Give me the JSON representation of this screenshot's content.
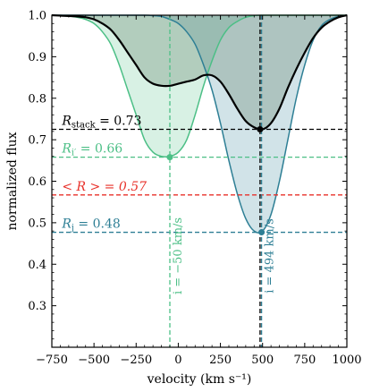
{
  "chart_data": {
    "type": "line",
    "xlabel": "velocity (km s⁻¹)",
    "ylabel": "normalized flux",
    "xlim": [
      -750,
      1000
    ],
    "ylim": [
      0.2,
      1.0
    ],
    "x_ticks": [
      -750,
      -500,
      -250,
      0,
      250,
      500,
      750,
      1000
    ],
    "x_tick_labels": [
      "−750",
      "−500",
      "−250",
      "0",
      "250",
      "500",
      "750",
      "1000"
    ],
    "y_ticks": [
      0.3,
      0.4,
      0.5,
      0.6,
      0.7,
      0.8,
      0.9,
      1.0
    ],
    "y_tick_labels": [
      "0.3",
      "0.4",
      "0.5",
      "0.6",
      "0.7",
      "0.8",
      "0.9",
      "1.0"
    ],
    "grid": false,
    "series": [
      {
        "color": "#4cbf86",
        "x": [
          -750,
          -700,
          -650,
          -600,
          -550,
          -500,
          -450,
          -400,
          -350,
          -300,
          -250,
          -200,
          -150,
          -100,
          -50,
          0,
          50,
          100,
          150,
          200,
          250,
          300,
          350,
          400,
          450,
          500,
          550,
          600,
          650,
          700,
          750,
          800,
          850,
          900,
          950,
          1000
        ],
        "y": [
          1.0,
          0.999,
          0.998,
          0.995,
          0.99,
          0.98,
          0.96,
          0.93,
          0.88,
          0.82,
          0.76,
          0.7,
          0.67,
          0.66,
          0.66,
          0.67,
          0.7,
          0.76,
          0.83,
          0.89,
          0.94,
          0.97,
          0.985,
          0.995,
          0.999,
          1.0,
          1.0,
          1.0,
          1.0,
          1.0,
          1.0,
          1.0,
          1.0,
          1.0,
          1.0,
          1.0
        ]
      },
      {
        "color": "#2e7f95",
        "x": [
          -750,
          -700,
          -650,
          -600,
          -550,
          -500,
          -450,
          -400,
          -350,
          -300,
          -250,
          -200,
          -150,
          -100,
          -50,
          0,
          50,
          100,
          150,
          200,
          250,
          300,
          350,
          400,
          450,
          500,
          550,
          600,
          650,
          700,
          750,
          800,
          850,
          900,
          950,
          1000
        ],
        "y": [
          1.0,
          1.0,
          1.0,
          1.0,
          1.0,
          1.0,
          1.0,
          1.0,
          1.0,
          1.0,
          1.0,
          1.0,
          0.999,
          0.997,
          0.99,
          0.98,
          0.96,
          0.93,
          0.88,
          0.82,
          0.74,
          0.65,
          0.57,
          0.51,
          0.48,
          0.48,
          0.52,
          0.6,
          0.7,
          0.8,
          0.88,
          0.94,
          0.975,
          0.99,
          0.997,
          1.0
        ]
      },
      {
        "color": "#000000",
        "x": [
          -750,
          -700,
          -650,
          -600,
          -550,
          -500,
          -450,
          -400,
          -350,
          -300,
          -250,
          -200,
          -150,
          -100,
          -50,
          0,
          50,
          100,
          150,
          200,
          250,
          300,
          350,
          400,
          450,
          500,
          550,
          600,
          650,
          700,
          750,
          800,
          850,
          900,
          950,
          1000
        ],
        "y": [
          1.0,
          0.999,
          0.998,
          0.997,
          0.995,
          0.99,
          0.98,
          0.965,
          0.94,
          0.91,
          0.88,
          0.85,
          0.835,
          0.83,
          0.83,
          0.835,
          0.84,
          0.845,
          0.855,
          0.855,
          0.84,
          0.81,
          0.775,
          0.745,
          0.73,
          0.725,
          0.74,
          0.775,
          0.825,
          0.87,
          0.91,
          0.945,
          0.97,
          0.985,
          0.995,
          1.0
        ]
      }
    ],
    "hlines": [
      {
        "y": 0.725,
        "color": "#000000",
        "label": "R",
        "label_sub": "stack",
        "label_value": " = 0.73",
        "label_x": -690
      },
      {
        "y": 0.658,
        "color": "#4cbf86",
        "label": "R",
        "label_sub": "i′",
        "label_value": " = 0.66",
        "label_x": -690
      },
      {
        "y": 0.567,
        "color": "#e8312a",
        "label": "< R > = 0.57",
        "label_sub": "",
        "label_value": "",
        "label_x": -690
      },
      {
        "y": 0.477,
        "color": "#2e7f95",
        "label": "R",
        "label_sub": "j",
        "label_value": " = 0.48",
        "label_x": -690
      }
    ],
    "vlines": [
      {
        "x": -50,
        "color": "#4cbf86",
        "label": "i = −50 km/s",
        "label_y": 0.42
      },
      {
        "x": 485,
        "color": "#000000",
        "label": "",
        "label_y": 0.42
      },
      {
        "x": 494,
        "color": "#2e7f95",
        "label": "i = 494 km/s",
        "label_y": 0.42
      }
    ],
    "points": [
      {
        "x": -50,
        "y": 0.658,
        "color": "#4cbf86"
      },
      {
        "x": 485,
        "y": 0.725,
        "color": "#000000"
      },
      {
        "x": 494,
        "y": 0.477,
        "color": "#2e7f95"
      }
    ]
  }
}
